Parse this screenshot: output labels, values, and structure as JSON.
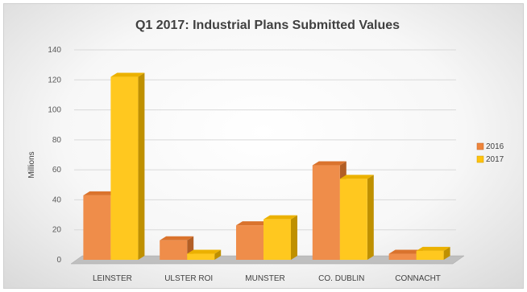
{
  "chart_data": {
    "type": "bar",
    "title": "Q1 2017: Industrial Plans Submitted Values",
    "ylabel": "Millions",
    "xlabel": "",
    "categories": [
      "LEINSTER",
      "ULSTER ROI",
      "MUNSTER",
      "CO. DUBLIN",
      "CONNACHT"
    ],
    "series": [
      {
        "name": "2016",
        "values": [
          43,
          13,
          23,
          63,
          4
        ],
        "color": "#ED7D31"
      },
      {
        "name": "2017",
        "values": [
          122,
          4,
          27,
          54,
          6
        ],
        "color": "#FFC000"
      }
    ],
    "ylim": [
      0,
      140
    ],
    "yticks": [
      0,
      20,
      40,
      60,
      80,
      100,
      120,
      140
    ],
    "grid": true,
    "style": "3d-clustered-column",
    "legend": "right"
  }
}
